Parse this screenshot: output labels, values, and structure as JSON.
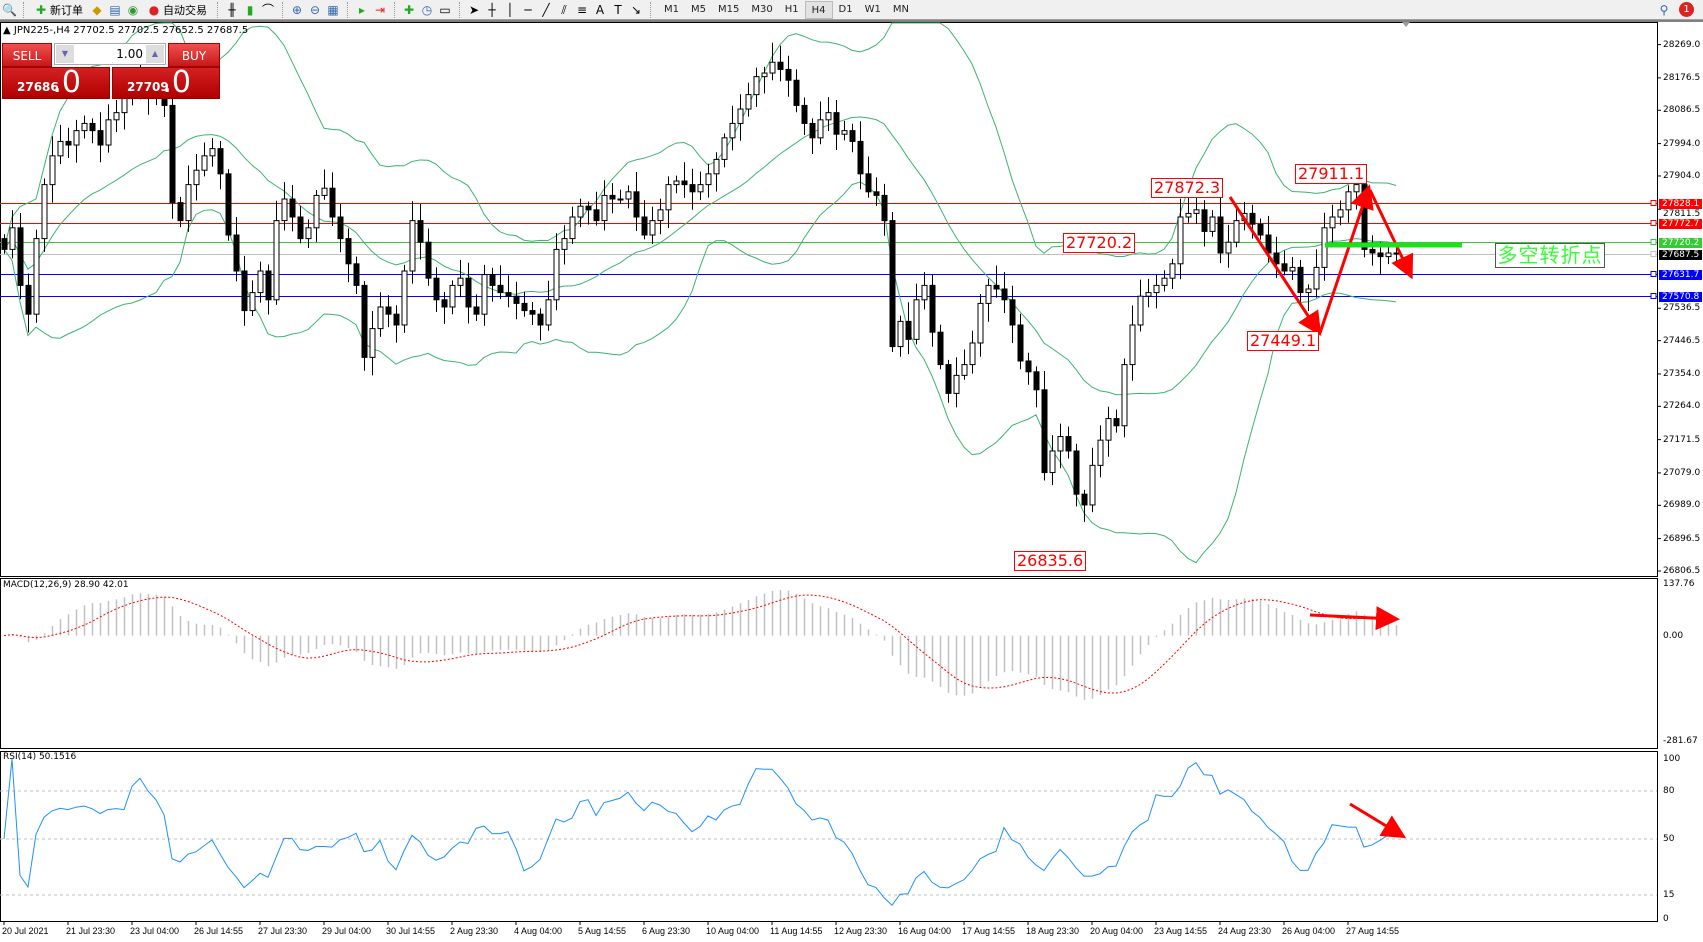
{
  "toolbar": {
    "new_order": "新订单",
    "auto_trading": "自动交易",
    "timeframes": [
      "M1",
      "M5",
      "M15",
      "M30",
      "H1",
      "H4",
      "D1",
      "W1",
      "MN"
    ],
    "active_timeframe": "H4",
    "notification_count": "1"
  },
  "chart": {
    "header": "JPN225-,H4  27702.5 27702.5 27652.5 27687.5",
    "trade_panel": {
      "sell": "SELL",
      "buy": "BUY",
      "lot": "1.00",
      "bid_main": "27686",
      "bid_frac": ".0",
      "ask_main": "27709",
      "ask_frac": ".0"
    },
    "price_ticks": [
      "28269.0",
      "28176.5",
      "28086.5",
      "27994.0",
      "27904.0",
      "27811.5",
      "27536.5",
      "27446.5",
      "27354.0",
      "27264.0",
      "27171.5",
      "27079.0",
      "26989.0",
      "26896.5",
      "26806.5"
    ],
    "levels": [
      {
        "price": "27828.1",
        "color": "#ff0000"
      },
      {
        "price": "27772.7",
        "color": "#ff0000"
      },
      {
        "price": "27720.2",
        "color": "#33cc33"
      },
      {
        "price": "27687.5",
        "color": "#000000"
      },
      {
        "price": "27631.7",
        "color": "#0000ff"
      },
      {
        "price": "27570.8",
        "color": "#0000ff"
      }
    ],
    "annotations": [
      "27872.3",
      "27720.2",
      "27911.1",
      "27449.1",
      "26835.6"
    ],
    "pivot_label": "多空转折点",
    "time_labels": [
      "20 Jul 2021",
      "21 Jul 23:30",
      "23 Jul 04:00",
      "26 Jul 14:55",
      "27 Jul 23:30",
      "29 Jul 04:00",
      "30 Jul 14:55",
      "2 Aug 23:30",
      "4 Aug 04:00",
      "5 Aug 14:55",
      "6 Aug 23:30",
      "10 Aug 04:00",
      "11 Aug 14:55",
      "12 Aug 23:30",
      "16 Aug 04:00",
      "17 Aug 14:55",
      "18 Aug 23:30",
      "20 Aug 04:00",
      "23 Aug 14:55",
      "24 Aug 23:30",
      "26 Aug 04:00",
      "27 Aug 14:55"
    ]
  },
  "macd": {
    "label": "MACD(12,26,9) 28.90 42.01",
    "ticks": [
      "137.76",
      "0.00",
      "-281.67"
    ]
  },
  "rsi": {
    "label": "RSI(14) 50.1516",
    "ticks": [
      "100",
      "80",
      "50",
      "15",
      "0"
    ]
  },
  "chart_data": {
    "type": "candlestick",
    "symbol": "JPN225-",
    "timeframe": "H4",
    "ylim": [
      26806.5,
      28269.0
    ],
    "closes": [
      27700,
      27760,
      27600,
      27520,
      27730,
      27880,
      27960,
      28000,
      27990,
      28030,
      28050,
      28030,
      27990,
      28060,
      28080,
      28120,
      28180,
      28150,
      28120,
      28130,
      28100,
      27830,
      27780,
      27880,
      27920,
      27960,
      27980,
      27910,
      27740,
      27640,
      27530,
      27580,
      27640,
      27560,
      27780,
      27840,
      27790,
      27730,
      27760,
      27850,
      27870,
      27790,
      27730,
      27660,
      27600,
      27400,
      27480,
      27540,
      27520,
      27490,
      27640,
      27780,
      27720,
      27620,
      27560,
      27540,
      27600,
      27620,
      27540,
      27520,
      27630,
      27600,
      27580,
      27570,
      27550,
      27530,
      27520,
      27490,
      27560,
      27700,
      27730,
      27790,
      27820,
      27810,
      27780,
      27850,
      27840,
      27840,
      27860,
      27790,
      27740,
      27780,
      27810,
      27880,
      27890,
      27880,
      27860,
      27880,
      27910,
      27950,
      28010,
      28050,
      28090,
      28130,
      28180,
      28190,
      28220,
      28200,
      28170,
      28100,
      28050,
      28010,
      28060,
      28080,
      28020,
      28030,
      28000,
      27910,
      27860,
      27850,
      27780,
      27430,
      27500,
      27450,
      27560,
      27600,
      27470,
      27380,
      27300,
      27350,
      27380,
      27440,
      27550,
      27600,
      27590,
      27560,
      27490,
      27390,
      27360,
      27310,
      27080,
      27140,
      27180,
      27140,
      27020,
      26990,
      27100,
      27170,
      27230,
      27210,
      27380,
      27490,
      27570,
      27580,
      27600,
      27620,
      27660,
      27790,
      27800,
      27810,
      27750,
      27790,
      27690,
      27720,
      27780,
      27800,
      27770,
      27740,
      27690,
      27660,
      27640,
      27650,
      27580,
      27590,
      27650,
      27760,
      27790,
      27810,
      27860,
      27880,
      27700,
      27690,
      27680,
      27690,
      27687.5
    ],
    "indicators": [
      "Bollinger Bands",
      "MACD(12,26,9)",
      "RSI(14)"
    ],
    "macd_ylim": [
      -281.67,
      137.76
    ],
    "rsi_levels": [
      80,
      50,
      15
    ],
    "colors": {
      "bands": "#3cb371",
      "macd_hist": "#c0c0c0",
      "macd_signal": "#ff0000",
      "rsi": "#1e90ff",
      "arrows": "#ff0000"
    }
  }
}
